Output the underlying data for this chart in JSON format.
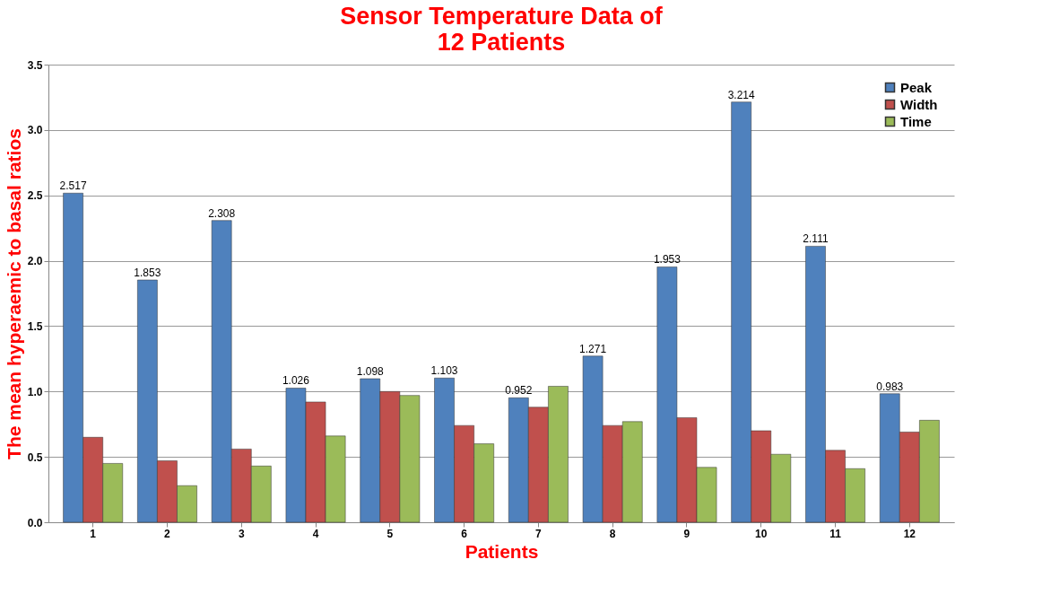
{
  "chart_data": {
    "type": "bar",
    "title": [
      "Sensor Temperature Data of",
      "12 Patients"
    ],
    "xlabel": "Patients",
    "ylabel": "The mean hyperaemic to basal ratios",
    "categories": [
      "1",
      "2",
      "3",
      "4",
      "5",
      "6",
      "7",
      "8",
      "9",
      "10",
      "11",
      "12"
    ],
    "series": [
      {
        "name": "Peak",
        "color": "#4f81bd",
        "values": [
          2.517,
          1.853,
          2.308,
          1.026,
          1.098,
          1.103,
          0.952,
          1.271,
          1.953,
          3.214,
          2.111,
          0.983
        ],
        "value_labels": [
          "2.517",
          "1.853",
          "2.308",
          "1.026",
          "1.098",
          "1.103",
          "0.952",
          "1.271",
          "1.953",
          "3.214",
          "2.111",
          "0.983"
        ]
      },
      {
        "name": "Width",
        "color": "#c0504d",
        "values": [
          0.65,
          0.47,
          0.56,
          0.92,
          1.0,
          0.74,
          0.88,
          0.74,
          0.8,
          0.7,
          0.55,
          0.69
        ]
      },
      {
        "name": "Time",
        "color": "#9bbb59",
        "values": [
          0.45,
          0.28,
          0.43,
          0.66,
          0.97,
          0.6,
          1.04,
          0.77,
          0.42,
          0.52,
          0.41,
          0.78
        ]
      }
    ],
    "ylim": [
      0,
      3.5
    ],
    "yticks": [
      {
        "value": 0,
        "label": "0.0"
      },
      {
        "value": 0.5,
        "label": "0.5"
      },
      {
        "value": 1,
        "label": "1.0"
      },
      {
        "value": 1.5,
        "label": "1.5"
      },
      {
        "value": 2,
        "label": "2.0"
      },
      {
        "value": 2.5,
        "label": "2.5"
      },
      {
        "value": 3,
        "label": "3.0"
      },
      {
        "value": 3.5,
        "label": "3.5"
      }
    ],
    "grid": "y",
    "legend": "top right"
  }
}
